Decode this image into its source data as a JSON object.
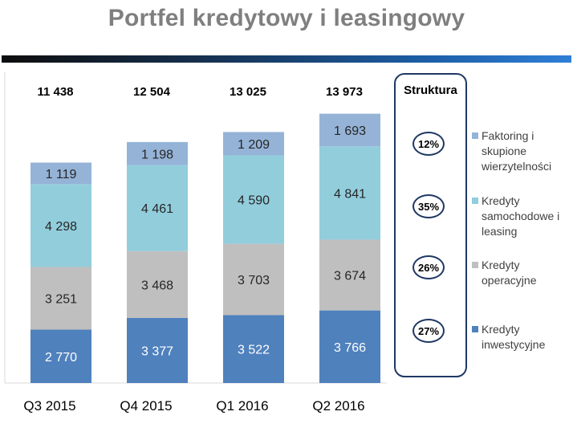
{
  "title": "Portfel kredytowy i leasingowy",
  "structure": {
    "title": "Struktura",
    "percentages": [
      "12%",
      "35%",
      "26%",
      "27%"
    ]
  },
  "colors": {
    "faktoring": "#95b3d7",
    "samochodowe": "#92cddc",
    "operacyjne": "#bfbfbf",
    "inwestycyjne": "#4f81bd",
    "accent": "#1f3864"
  },
  "chart_data": {
    "type": "bar",
    "stacked": true,
    "categories": [
      "Q3 2015",
      "Q4 2015",
      "Q1 2016",
      "Q2 2016"
    ],
    "totals": [
      "11 438",
      "12 504",
      "13 025",
      "13 973"
    ],
    "series": [
      {
        "name": "Kredyty inwestycyjne",
        "values": [
          2770,
          3377,
          3522,
          3766
        ],
        "labels": [
          "2 770",
          "3 377",
          "3 522",
          "3 766"
        ],
        "color": "#4f81bd"
      },
      {
        "name": "Kredyty operacyjne",
        "values": [
          3251,
          3468,
          3703,
          3674
        ],
        "labels": [
          "3 251",
          "3 468",
          "3 703",
          "3 674"
        ],
        "color": "#bfbfbf"
      },
      {
        "name": "Kredyty samochodowe i leasing",
        "values": [
          4298,
          4461,
          4590,
          4841
        ],
        "labels": [
          "4 298",
          "4 461",
          "4 590",
          "4 841"
        ],
        "color": "#92cddc"
      },
      {
        "name": "Faktoring i skupione wierzytelności",
        "values": [
          1119,
          1198,
          1209,
          1693
        ],
        "labels": [
          "1 119",
          "1 198",
          "1 209",
          "1 693"
        ],
        "color": "#95b3d7"
      }
    ],
    "legend": [
      {
        "lines": [
          "Faktoring i",
          "skupione",
          "wierzytelności"
        ],
        "color": "#95b3d7"
      },
      {
        "lines": [
          "Kredyty",
          "samochodowe i",
          "leasing"
        ],
        "color": "#92cddc"
      },
      {
        "lines": [
          "Kredyty",
          "operacyjne"
        ],
        "color": "#bfbfbf"
      },
      {
        "lines": [
          "Kredyty",
          "inwestycyjne"
        ],
        "color": "#4f81bd"
      }
    ],
    "legend_position": "right",
    "grid": false
  }
}
